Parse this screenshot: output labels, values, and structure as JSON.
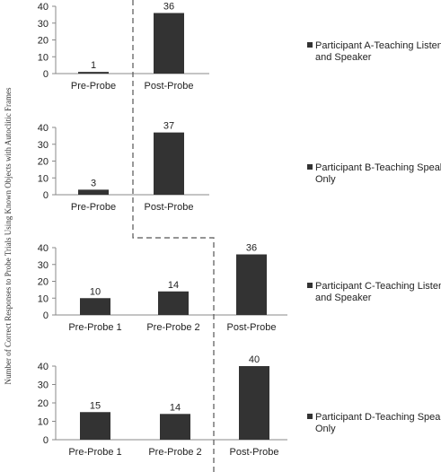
{
  "chart_data": {
    "type": "bar",
    "ylabel": "Number of Correct Responses to Probe Trials Using Known Objects with Autoclitic Frames",
    "colors": {
      "bar": "#333333",
      "axis": "#888888",
      "phase_line": "#555555",
      "text": "#222222"
    },
    "panels": [
      {
        "categories": [
          "Pre-Probe",
          "Post-Probe"
        ],
        "values": [
          1,
          36
        ],
        "data_labels": [
          "1",
          "36"
        ],
        "ylim": [
          0,
          40
        ],
        "yticks": [
          "0",
          "10",
          "20",
          "30",
          "40"
        ],
        "legend": "Participant A-Teaching Listener and Speaker",
        "legend_lines": [
          "Participant A-Teaching Listener",
          "and Speaker"
        ]
      },
      {
        "categories": [
          "Pre-Probe",
          "Post-Probe"
        ],
        "values": [
          3,
          37
        ],
        "data_labels": [
          "3",
          "37"
        ],
        "ylim": [
          0,
          40
        ],
        "yticks": [
          "0",
          "10",
          "20",
          "30",
          "40"
        ],
        "legend": "Participant B-Teaching Speaker Only",
        "legend_lines": [
          "Participant B-Teaching Speaker",
          "Only"
        ]
      },
      {
        "categories": [
          "Pre-Probe 1",
          "Pre-Probe 2",
          "Post-Probe"
        ],
        "values": [
          10,
          14,
          36
        ],
        "data_labels": [
          "10",
          "14",
          "36"
        ],
        "ylim": [
          0,
          40
        ],
        "yticks": [
          "0",
          "10",
          "20",
          "30",
          "40"
        ],
        "legend": "Participant C-Teaching Listener and Speaker",
        "legend_lines": [
          "Participant C-Teaching Listener",
          "and Speaker"
        ]
      },
      {
        "categories": [
          "Pre-Probe 1",
          "Pre-Probe 2",
          "Post-Probe"
        ],
        "values": [
          15,
          14,
          40
        ],
        "data_labels": [
          "15",
          "14",
          "40"
        ],
        "ylim": [
          0,
          40
        ],
        "yticks": [
          "0",
          "10",
          "20",
          "30",
          "40"
        ],
        "legend": "Participant D-Teaching Speaker Only",
        "legend_lines": [
          "Participant D-Teaching Speaker",
          "Only"
        ]
      }
    ],
    "grid": false,
    "legend_position": "right"
  }
}
